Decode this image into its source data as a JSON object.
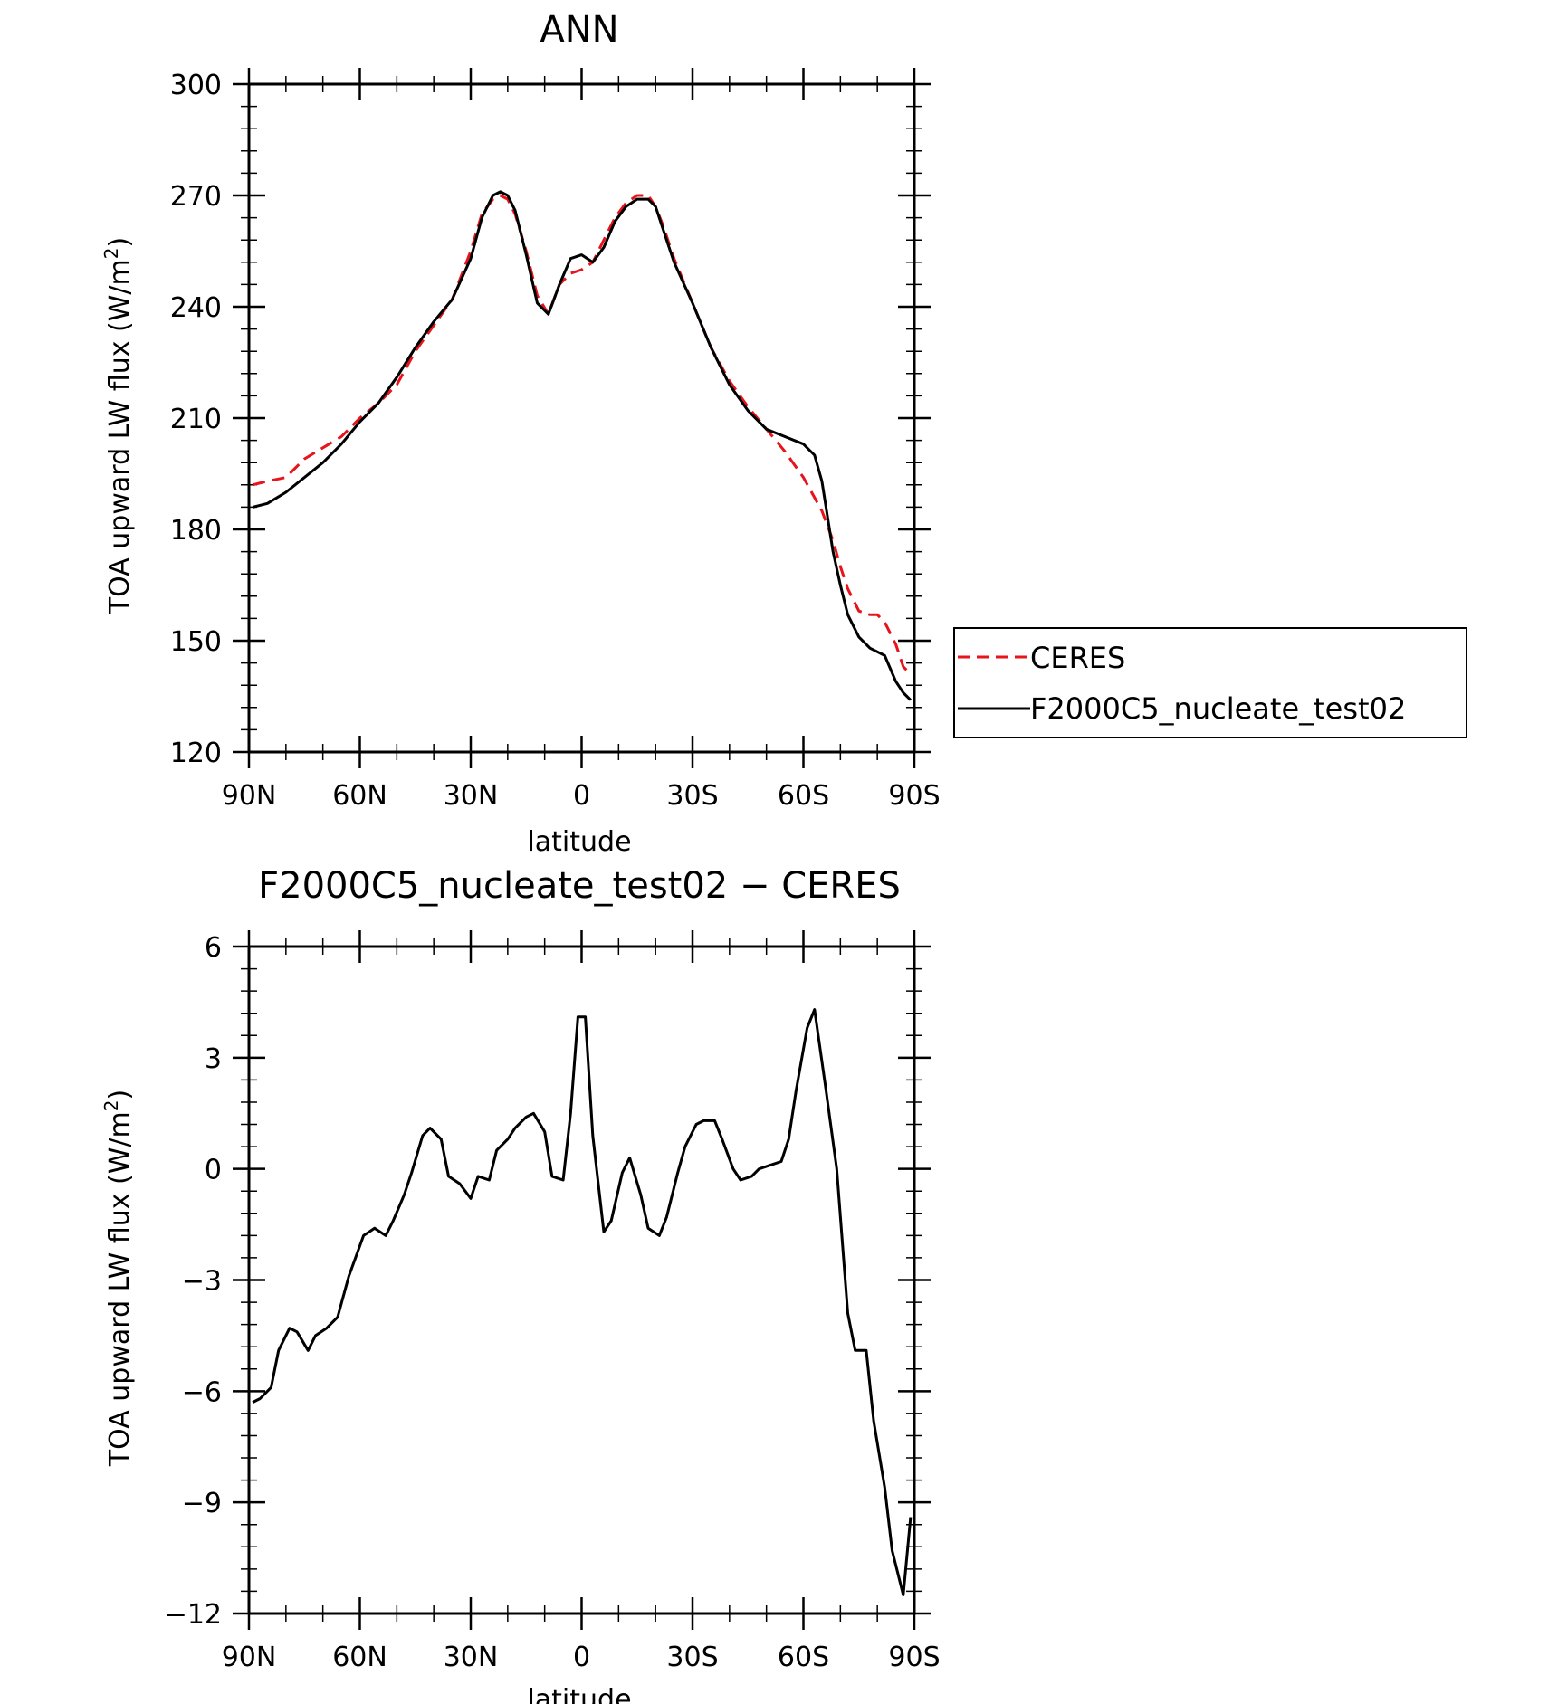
{
  "chart_data": [
    {
      "type": "line",
      "title": "ANN",
      "xlabel": "latitude",
      "ylabel": "TOA upward LW flux (W/m",
      "ylabel_sup": "2",
      "ylabel_close": ")",
      "ylim": [
        120,
        300
      ],
      "y_ticks": [
        120,
        150,
        180,
        210,
        240,
        270,
        300
      ],
      "y_tick_labels": [
        "120",
        "150",
        "180",
        "210",
        "240",
        "270",
        "300"
      ],
      "xlim": [
        90,
        -90
      ],
      "x_ticks": [
        90,
        60,
        30,
        0,
        -30,
        -60,
        -90
      ],
      "x_tick_labels": [
        "90N",
        "60N",
        "30N",
        "0",
        "30S",
        "60S",
        "90S"
      ],
      "legend_position": "right",
      "series": [
        {
          "name": "CERES",
          "color": "#e8141b",
          "style": "dashed",
          "x": [
            89,
            85,
            80,
            75,
            70,
            65,
            60,
            55,
            50,
            45,
            40,
            35,
            30,
            27,
            24,
            22,
            20,
            18,
            15,
            12,
            9,
            6,
            3,
            0,
            -3,
            -6,
            -9,
            -12,
            -15,
            -18,
            -20,
            -22,
            -25,
            -30,
            -35,
            -40,
            -45,
            -50,
            -55,
            -60,
            -65,
            -68,
            -70,
            -72,
            -75,
            -78,
            -80,
            -82,
            -85,
            -87,
            -89
          ],
          "y": [
            192,
            193,
            194,
            199,
            202,
            205,
            210,
            214,
            219,
            228,
            235,
            242,
            255,
            265,
            269,
            270,
            269,
            265,
            255,
            243,
            238,
            246,
            249,
            250,
            252,
            258,
            264,
            268,
            270,
            270,
            267,
            262,
            253,
            241,
            229,
            220,
            213,
            207,
            201,
            194,
            185,
            177,
            170,
            164,
            158,
            157,
            157,
            155,
            149,
            143,
            141
          ]
        },
        {
          "name": "F2000C5_nucleate_test02",
          "color": "#000000",
          "style": "solid",
          "x": [
            89,
            85,
            80,
            75,
            70,
            65,
            60,
            55,
            50,
            45,
            40,
            35,
            30,
            27,
            24,
            22,
            20,
            18,
            15,
            12,
            9,
            6,
            3,
            0,
            -3,
            -6,
            -9,
            -12,
            -15,
            -18,
            -20,
            -22,
            -25,
            -30,
            -35,
            -40,
            -45,
            -50,
            -55,
            -60,
            -63,
            -65,
            -68,
            -70,
            -72,
            -75,
            -78,
            -82,
            -85,
            -87,
            -89
          ],
          "y": [
            186,
            187,
            190,
            194,
            198,
            203,
            209,
            214,
            221,
            229,
            236,
            242,
            253,
            264,
            270,
            271,
            270,
            266,
            254,
            241,
            238,
            246,
            253,
            254,
            252,
            256,
            263,
            267,
            269,
            269,
            267,
            261,
            252,
            241,
            229,
            219,
            212,
            207,
            205,
            203,
            200,
            193,
            174,
            165,
            157,
            151,
            148,
            146,
            139,
            136,
            134
          ]
        }
      ]
    },
    {
      "type": "line",
      "title": "F2000C5_nucleate_test02 − CERES",
      "xlabel": "latitude",
      "ylabel": "TOA upward LW flux (W/m",
      "ylabel_sup": "2",
      "ylabel_close": ")",
      "ylim": [
        -12,
        6
      ],
      "y_ticks": [
        -12,
        -9,
        -6,
        -3,
        0,
        3,
        6
      ],
      "y_tick_labels": [
        "−12",
        "−9",
        "−6",
        "−3",
        "0",
        "3",
        "6"
      ],
      "xlim": [
        90,
        -90
      ],
      "x_ticks": [
        90,
        60,
        30,
        0,
        -30,
        -60,
        -90
      ],
      "x_tick_labels": [
        "90N",
        "60N",
        "30N",
        "0",
        "30S",
        "60S",
        "90S"
      ],
      "series": [
        {
          "color": "#000000",
          "style": "solid",
          "x": [
            89,
            87,
            84,
            82,
            79,
            77,
            74,
            72,
            69,
            66,
            63,
            59,
            56,
            53,
            51,
            48,
            46,
            43,
            41,
            38,
            36,
            33,
            30,
            28,
            25,
            23,
            20,
            18,
            15,
            13,
            10,
            8,
            5,
            3,
            1,
            -1,
            -3,
            -6,
            -8,
            -11,
            -13,
            -16,
            -18,
            -21,
            -23,
            -26,
            -28,
            -31,
            -33,
            -36,
            -38,
            -41,
            -43,
            -46,
            -48,
            -51,
            -54,
            -56,
            -58,
            -61,
            -63,
            -66,
            -69,
            -72,
            -74,
            -77,
            -79,
            -82,
            -84,
            -87,
            -89
          ],
          "y": [
            -6.3,
            -6.2,
            -5.9,
            -4.9,
            -4.3,
            -4.4,
            -4.9,
            -4.5,
            -4.3,
            -4.0,
            -2.9,
            -1.8,
            -1.6,
            -1.8,
            -1.4,
            -0.7,
            -0.1,
            0.9,
            1.1,
            0.8,
            -0.2,
            -0.4,
            -0.8,
            -0.2,
            -0.3,
            0.5,
            0.8,
            1.1,
            1.4,
            1.5,
            1.0,
            -0.2,
            -0.3,
            1.5,
            4.1,
            4.1,
            0.9,
            -1.7,
            -1.4,
            -0.1,
            0.3,
            -0.7,
            -1.6,
            -1.8,
            -1.3,
            -0.1,
            0.6,
            1.2,
            1.3,
            1.3,
            0.8,
            0.0,
            -0.3,
            -0.2,
            0.0,
            0.1,
            0.2,
            0.8,
            2.1,
            3.8,
            4.3,
            2.2,
            0.0,
            -3.9,
            -4.9,
            -4.9,
            -6.8,
            -8.6,
            -10.3,
            -11.5,
            -9.4
          ]
        }
      ]
    }
  ]
}
